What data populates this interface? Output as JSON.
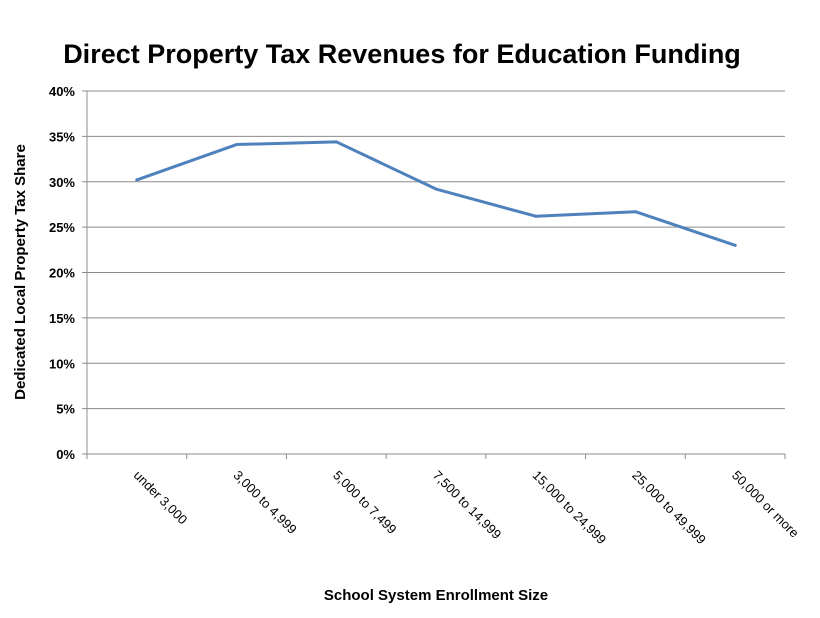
{
  "chart_data": {
    "type": "line",
    "title": "Direct Property Tax Revenues for Education Funding",
    "xlabel": "School System Enrollment Size",
    "ylabel": "Dedicated Local Property Tax Share",
    "categories": [
      "under 3,000",
      "3,000 to 4,999",
      "5,000 to 7,499",
      "7,500 to 14,999",
      "15,000 to 24,999",
      "25,000 to 49,999",
      "50,000 or more"
    ],
    "series": [
      {
        "values": [
          0.302,
          0.341,
          0.344,
          0.292,
          0.262,
          0.267,
          0.23
        ]
      }
    ],
    "yticks": [
      "0%",
      "5%",
      "10%",
      "15%",
      "20%",
      "25%",
      "30%",
      "35%",
      "40%"
    ],
    "ylim": [
      0,
      0.4
    ],
    "grid": true,
    "legend": "none",
    "colors": {
      "series": "#4f81bd",
      "grid": "#8c8c8c"
    }
  }
}
